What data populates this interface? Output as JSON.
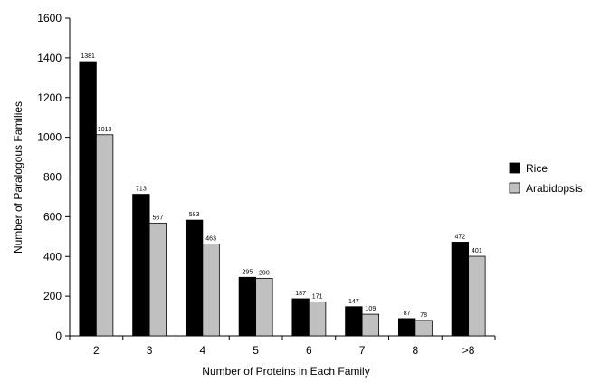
{
  "chart_data": {
    "type": "bar",
    "title": "",
    "xlabel": "Number of Proteins in Each Family",
    "ylabel": "Number of Paralogous Families",
    "categories": [
      "2",
      "3",
      "4",
      "5",
      "6",
      "7",
      "8",
      ">8"
    ],
    "series": [
      {
        "name": "Rice",
        "values": [
          1381,
          713,
          583,
          295,
          187,
          147,
          87,
          472
        ],
        "color": "#000000"
      },
      {
        "name": "Arabidopsis",
        "values": [
          1013,
          567,
          463,
          290,
          171,
          109,
          78,
          401
        ],
        "color": "#c0c0c0"
      }
    ],
    "ylim": [
      0,
      1600
    ],
    "yticks": [
      0,
      200,
      400,
      600,
      800,
      1000,
      1200,
      1400,
      1600
    ],
    "grid": false,
    "legend_position": "right"
  }
}
